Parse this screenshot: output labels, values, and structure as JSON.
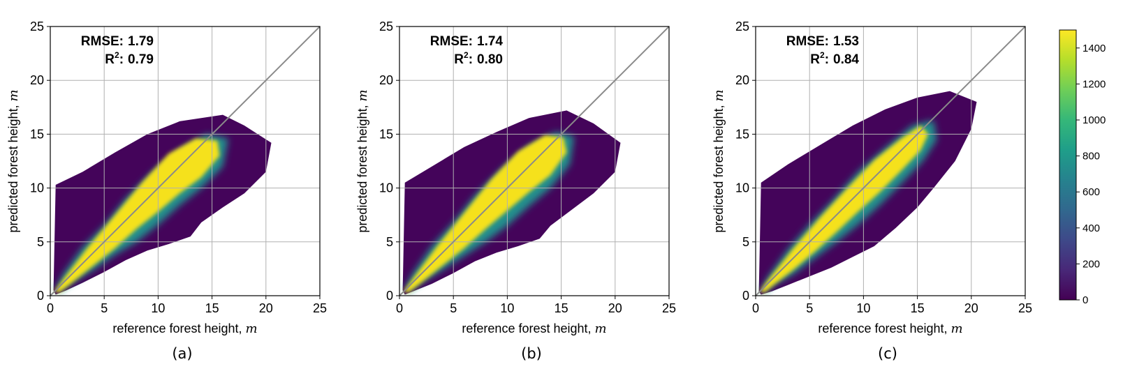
{
  "chart_data": [
    {
      "type": "heatmap",
      "panel_label": "(a)",
      "xlabel": "reference forest height,",
      "xlabel_unit": "m",
      "ylabel": "predicted forest height,",
      "ylabel_unit": "m",
      "xlim": [
        0,
        25
      ],
      "ylim": [
        0,
        25
      ],
      "xticks": [
        "0",
        "5",
        "10",
        "15",
        "20",
        "25"
      ],
      "yticks": [
        "0",
        "5",
        "10",
        "15",
        "20",
        "25"
      ],
      "grid": true,
      "reference_line": "y = x",
      "rmse_label": "RMSE:",
      "rmse": "1.79",
      "r2_label": "R",
      "r2_sup": "2",
      "r2_suffix": ":",
      "r2": "0.79",
      "density": {
        "outer": [
          [
            0.3,
            0.5
          ],
          [
            0.5,
            10.3
          ],
          [
            3,
            11.5
          ],
          [
            6,
            13.3
          ],
          [
            9,
            15
          ],
          [
            12,
            16.2
          ],
          [
            16,
            16.8
          ],
          [
            18,
            15.8
          ],
          [
            20.5,
            14.2
          ],
          [
            20,
            11.5
          ],
          [
            18,
            9.5
          ],
          [
            16,
            8.2
          ],
          [
            14,
            6.8
          ],
          [
            13,
            5.5
          ],
          [
            11,
            4.8
          ],
          [
            9,
            4.2
          ],
          [
            7,
            3.3
          ],
          [
            5,
            2.2
          ],
          [
            3,
            1.2
          ],
          [
            1.5,
            0.5
          ],
          [
            0.5,
            0.1
          ]
        ],
        "mid": [
          [
            0.5,
            0.6
          ],
          [
            1.2,
            2
          ],
          [
            3,
            4.5
          ],
          [
            5,
            6.5
          ],
          [
            7,
            9
          ],
          [
            9.5,
            11.5
          ],
          [
            12,
            13.5
          ],
          [
            14.5,
            15
          ],
          [
            16.5,
            14.6
          ],
          [
            16,
            12
          ],
          [
            14,
            10
          ],
          [
            12,
            8.4
          ],
          [
            10,
            6.6
          ],
          [
            8,
            5
          ],
          [
            6,
            3.8
          ],
          [
            4,
            2.4
          ],
          [
            2,
            1.2
          ],
          [
            0.8,
            0.3
          ]
        ],
        "core": [
          [
            0.4,
            0.4
          ],
          [
            1.2,
            1.5
          ],
          [
            3.5,
            4.5
          ],
          [
            6,
            7.5
          ],
          [
            8.5,
            10.5
          ],
          [
            11,
            13.2
          ],
          [
            13.5,
            14.6
          ],
          [
            15.5,
            14.4
          ],
          [
            15.7,
            13
          ],
          [
            14,
            11
          ],
          [
            12,
            9.5
          ],
          [
            10,
            7.8
          ],
          [
            8,
            6.2
          ],
          [
            6,
            4.4
          ],
          [
            4,
            2.8
          ],
          [
            2,
            1.2
          ],
          [
            0.8,
            0.3
          ]
        ]
      }
    },
    {
      "type": "heatmap",
      "panel_label": "(b)",
      "xlabel": "reference forest height,",
      "xlabel_unit": "m",
      "ylabel": "predicted forest height,",
      "ylabel_unit": "m",
      "xlim": [
        0,
        25
      ],
      "ylim": [
        0,
        25
      ],
      "xticks": [
        "0",
        "5",
        "10",
        "15",
        "20",
        "25"
      ],
      "yticks": [
        "0",
        "5",
        "10",
        "15",
        "20",
        "25"
      ],
      "grid": true,
      "reference_line": "y = x",
      "rmse_label": "RMSE:",
      "rmse": "1.74",
      "r2_label": "R",
      "r2_sup": "2",
      "r2_suffix": ":",
      "r2": "0.80",
      "density": {
        "outer": [
          [
            0.3,
            0.5
          ],
          [
            0.5,
            10.5
          ],
          [
            3,
            12
          ],
          [
            6,
            13.8
          ],
          [
            9,
            15.2
          ],
          [
            12,
            16.5
          ],
          [
            15.5,
            17.2
          ],
          [
            18,
            16
          ],
          [
            20.5,
            14.2
          ],
          [
            20,
            11.5
          ],
          [
            18,
            9.5
          ],
          [
            16,
            8
          ],
          [
            14,
            6.5
          ],
          [
            13,
            5.3
          ],
          [
            11,
            4.6
          ],
          [
            9,
            4
          ],
          [
            7,
            3.2
          ],
          [
            5,
            2.1
          ],
          [
            3,
            1.1
          ],
          [
            1.5,
            0.5
          ],
          [
            0.5,
            0.1
          ]
        ],
        "mid": [
          [
            0.5,
            0.6
          ],
          [
            1.2,
            2
          ],
          [
            3,
            4.6
          ],
          [
            5,
            6.8
          ],
          [
            7,
            9.3
          ],
          [
            9.5,
            11.8
          ],
          [
            12,
            13.9
          ],
          [
            14.5,
            15.2
          ],
          [
            16.2,
            14.8
          ],
          [
            15.8,
            12.2
          ],
          [
            14,
            10
          ],
          [
            12,
            8.3
          ],
          [
            10,
            6.5
          ],
          [
            8,
            5
          ],
          [
            6,
            3.7
          ],
          [
            4,
            2.4
          ],
          [
            2,
            1.2
          ],
          [
            0.8,
            0.3
          ]
        ],
        "core": [
          [
            0.4,
            0.4
          ],
          [
            1.2,
            1.5
          ],
          [
            3.5,
            4.6
          ],
          [
            6,
            7.7
          ],
          [
            8.5,
            10.8
          ],
          [
            11,
            13.4
          ],
          [
            13.5,
            14.9
          ],
          [
            15.2,
            14.7
          ],
          [
            15.5,
            13.3
          ],
          [
            14,
            11.2
          ],
          [
            12,
            9.6
          ],
          [
            10,
            7.9
          ],
          [
            8,
            6.2
          ],
          [
            6,
            4.4
          ],
          [
            4,
            2.8
          ],
          [
            2,
            1.2
          ],
          [
            0.8,
            0.3
          ]
        ]
      }
    },
    {
      "type": "heatmap",
      "panel_label": "(c)",
      "xlabel": "reference forest height,",
      "xlabel_unit": "m",
      "ylabel": "predicted forest height,",
      "ylabel_unit": "m",
      "xlim": [
        0,
        25
      ],
      "ylim": [
        0,
        25
      ],
      "xticks": [
        "0",
        "5",
        "10",
        "15",
        "20",
        "25"
      ],
      "yticks": [
        "0",
        "5",
        "10",
        "15",
        "20",
        "25"
      ],
      "grid": true,
      "reference_line": "y = x",
      "rmse_label": "RMSE:",
      "rmse": "1.53",
      "r2_label": "R",
      "r2_sup": "2",
      "r2_suffix": ":",
      "r2": "0.84",
      "density": {
        "outer": [
          [
            0.3,
            0.4
          ],
          [
            0.5,
            10.5
          ],
          [
            3,
            12.2
          ],
          [
            6,
            14
          ],
          [
            9,
            15.8
          ],
          [
            12,
            17.3
          ],
          [
            15,
            18.4
          ],
          [
            18,
            19
          ],
          [
            20.5,
            18
          ],
          [
            20,
            15.5
          ],
          [
            18.5,
            12.5
          ],
          [
            16.5,
            10
          ],
          [
            15,
            8.2
          ],
          [
            13,
            6.3
          ],
          [
            11,
            4.6
          ],
          [
            9,
            3.6
          ],
          [
            7,
            2.6
          ],
          [
            5,
            1.8
          ],
          [
            3,
            1
          ],
          [
            1.5,
            0.4
          ],
          [
            0.5,
            0.1
          ]
        ],
        "mid": [
          [
            0.5,
            0.5
          ],
          [
            1.2,
            1.8
          ],
          [
            3,
            4.3
          ],
          [
            5,
            6.6
          ],
          [
            7,
            8.7
          ],
          [
            9.5,
            11.5
          ],
          [
            12,
            13.7
          ],
          [
            14.5,
            15.8
          ],
          [
            16.5,
            16.3
          ],
          [
            16.8,
            14.5
          ],
          [
            15.5,
            12.5
          ],
          [
            13.5,
            10.4
          ],
          [
            11.5,
            8.4
          ],
          [
            9.5,
            6.6
          ],
          [
            7.5,
            5
          ],
          [
            5.5,
            3.5
          ],
          [
            3.5,
            2
          ],
          [
            1.5,
            0.9
          ],
          [
            0.8,
            0.2
          ]
        ],
        "core": [
          [
            0.4,
            0.4
          ],
          [
            1.2,
            1.5
          ],
          [
            3.5,
            4.4
          ],
          [
            6,
            7.3
          ],
          [
            8.5,
            10
          ],
          [
            11,
            12.6
          ],
          [
            13.5,
            14.6
          ],
          [
            15.3,
            15.8
          ],
          [
            16,
            15
          ],
          [
            15.3,
            13.5
          ],
          [
            13.5,
            11.6
          ],
          [
            11.5,
            9.6
          ],
          [
            9.5,
            7.8
          ],
          [
            7.5,
            5.9
          ],
          [
            5.5,
            4.1
          ],
          [
            3.5,
            2.4
          ],
          [
            1.8,
            1.1
          ],
          [
            0.8,
            0.3
          ]
        ]
      }
    }
  ],
  "colorbar": {
    "colormap": "viridis",
    "min": 0,
    "max": 1500,
    "ticks": [
      "0",
      "200",
      "400",
      "600",
      "800",
      "1000",
      "1200",
      "1400"
    ],
    "tick_values": [
      0,
      200,
      400,
      600,
      800,
      1000,
      1200,
      1400
    ],
    "colors": [
      "#440154",
      "#482878",
      "#3e4989",
      "#31688e",
      "#26828e",
      "#1f9e89",
      "#35b779",
      "#6ece58",
      "#b5de2b",
      "#fde725"
    ]
  },
  "colors": {
    "grid": "#b0b0b0",
    "diagonal": "#8a8a8a",
    "outer": "#44045a",
    "mid": "#20908d",
    "core": "#f5e11c",
    "axis": "#000000"
  }
}
